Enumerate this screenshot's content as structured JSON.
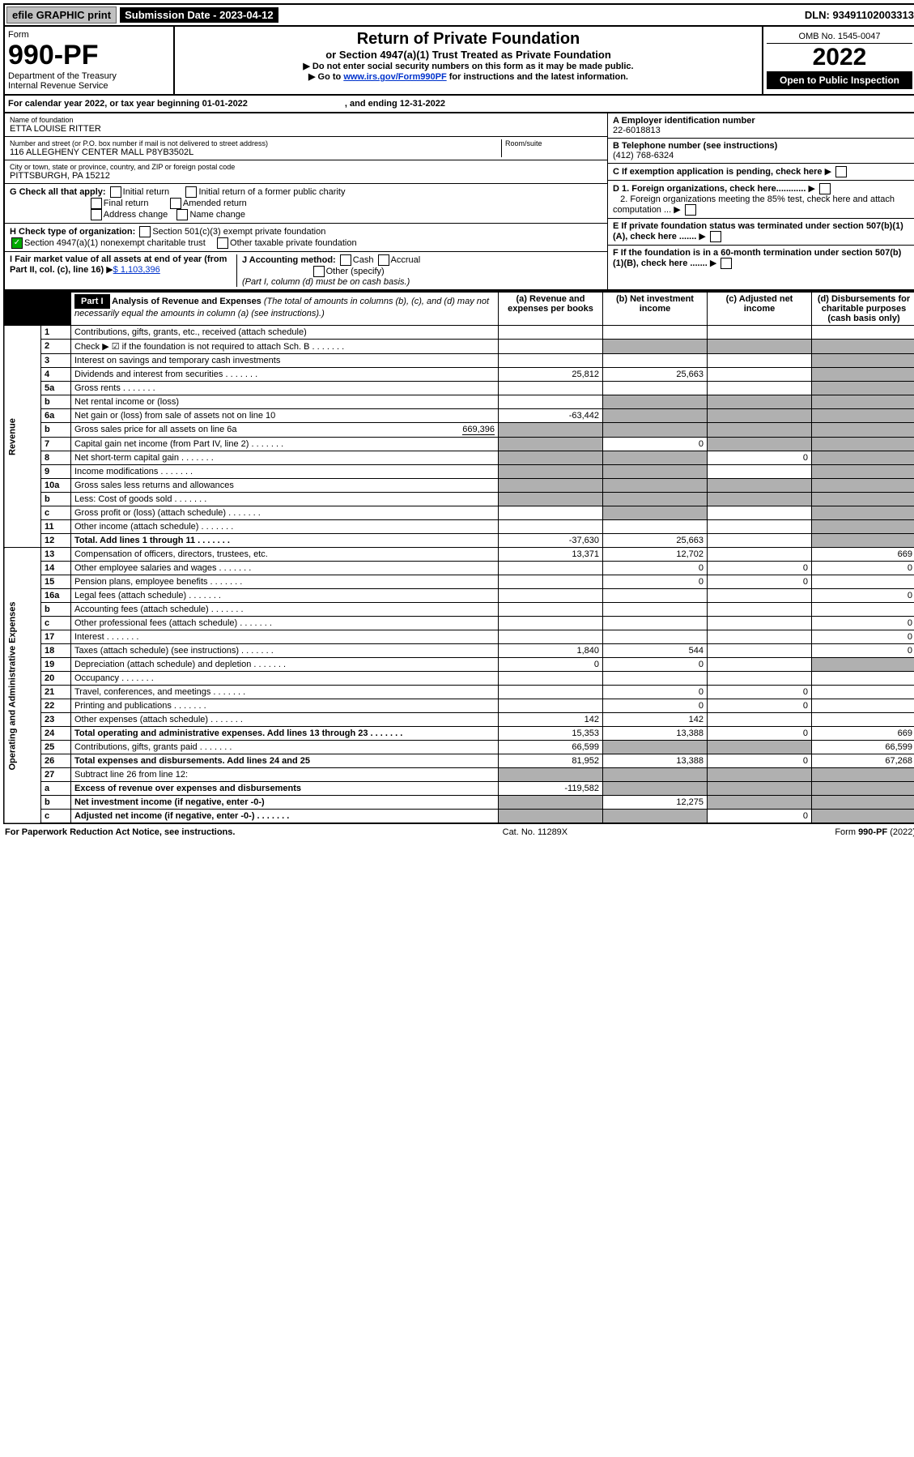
{
  "topbar": {
    "efile": "efile GRAPHIC print",
    "submission_label": "Submission Date - 2023-04-12",
    "dln": "DLN: 93491102003313"
  },
  "header": {
    "form_label": "Form",
    "form_number": "990-PF",
    "dept": "Department of the Treasury",
    "irs": "Internal Revenue Service",
    "title": "Return of Private Foundation",
    "subtitle": "or Section 4947(a)(1) Trust Treated as Private Foundation",
    "instr1": "▶ Do not enter social security numbers on this form as it may be made public.",
    "instr2_pre": "▶ Go to ",
    "instr2_link": "www.irs.gov/Form990PF",
    "instr2_post": " for instructions and the latest information.",
    "omb": "OMB No. 1545-0047",
    "year": "2022",
    "open": "Open to Public Inspection"
  },
  "cal": {
    "text_a": "For calendar year 2022, or tax year beginning 01-01-2022",
    "text_b": ", and ending 12-31-2022"
  },
  "id": {
    "name_label": "Name of foundation",
    "name": "ETTA LOUISE RITTER",
    "addr_label": "Number and street (or P.O. box number if mail is not delivered to street address)",
    "addr": "116 ALLEGHENY CENTER MALL P8YB3502L",
    "room_label": "Room/suite",
    "city_label": "City or town, state or province, country, and ZIP or foreign postal code",
    "city": "PITTSBURGH, PA  15212",
    "a_label": "A Employer identification number",
    "a_val": "22-6018813",
    "b_label": "B Telephone number (see instructions)",
    "b_val": "(412) 768-6324",
    "c_label": "C If exemption application is pending, check here",
    "d1": "D 1. Foreign organizations, check here............",
    "d2": "2. Foreign organizations meeting the 85% test, check here and attach computation ...",
    "e": "E  If private foundation status was terminated under section 507(b)(1)(A), check here .......",
    "f": "F  If the foundation is in a 60-month termination under section 507(b)(1)(B), check here .......",
    "g_label": "G Check all that apply:",
    "g_opts": [
      "Initial return",
      "Final return",
      "Address change",
      "Initial return of a former public charity",
      "Amended return",
      "Name change"
    ],
    "h_label": "H Check type of organization:",
    "h_opts": [
      "Section 501(c)(3) exempt private foundation",
      "Section 4947(a)(1) nonexempt charitable trust",
      "Other taxable private foundation"
    ],
    "i_label": "I Fair market value of all assets at end of year (from Part II, col. (c), line 16)",
    "i_val": "$  1,103,396",
    "j_label": "J Accounting method:",
    "j_opts": [
      "Cash",
      "Accrual",
      "Other (specify)"
    ],
    "j_note": "(Part I, column (d) must be on cash basis.)"
  },
  "part1": {
    "label": "Part I",
    "title": "Analysis of Revenue and Expenses",
    "title_note": "(The total of amounts in columns (b), (c), and (d) may not necessarily equal the amounts in column (a) (see instructions).)",
    "cols": {
      "a": "(a)  Revenue and expenses per books",
      "b": "(b)  Net investment income",
      "c": "(c)  Adjusted net income",
      "d": "(d)  Disbursements for charitable purposes (cash basis only)"
    },
    "side_rev": "Revenue",
    "side_exp": "Operating and Administrative Expenses",
    "rows": [
      {
        "n": "1",
        "l": "Contributions, gifts, grants, etc., received (attach schedule)",
        "a": "",
        "b": "",
        "c": "",
        "d": "",
        "dg": false,
        "cg": false,
        "bg": false
      },
      {
        "n": "2",
        "l": "Check ▶ ☑ if the foundation is not required to attach Sch. B",
        "dots": true,
        "a": "",
        "b": "",
        "c": "",
        "d": "",
        "bg": true,
        "cg": true,
        "dg": true
      },
      {
        "n": "3",
        "l": "Interest on savings and temporary cash investments",
        "a": "",
        "b": "",
        "c": "",
        "d": "",
        "dg": true
      },
      {
        "n": "4",
        "l": "Dividends and interest from securities",
        "dots": true,
        "a": "25,812",
        "b": "25,663",
        "c": "",
        "d": "",
        "dg": true
      },
      {
        "n": "5a",
        "l": "Gross rents",
        "dots": true,
        "a": "",
        "b": "",
        "c": "",
        "d": "",
        "dg": true
      },
      {
        "n": "b",
        "l": "Net rental income or (loss)",
        "a": "",
        "b": "",
        "c": "",
        "d": "",
        "bg": true,
        "cg": true,
        "dg": true,
        "inline": true
      },
      {
        "n": "6a",
        "l": "Net gain or (loss) from sale of assets not on line 10",
        "a": "-63,442",
        "b": "",
        "c": "",
        "d": "",
        "bg": true,
        "cg": true,
        "dg": true
      },
      {
        "n": "b",
        "l": "Gross sales price for all assets on line 6a",
        "inline_val": "669,396",
        "a": "",
        "b": "",
        "c": "",
        "d": "",
        "ag": true,
        "bg": true,
        "cg": true,
        "dg": true
      },
      {
        "n": "7",
        "l": "Capital gain net income (from Part IV, line 2)",
        "dots": true,
        "a": "",
        "b": "0",
        "c": "",
        "d": "",
        "ag": true,
        "cg": true,
        "dg": true
      },
      {
        "n": "8",
        "l": "Net short-term capital gain",
        "dots": true,
        "a": "",
        "b": "",
        "c": "0",
        "d": "",
        "ag": true,
        "bg": true,
        "dg": true
      },
      {
        "n": "9",
        "l": "Income modifications",
        "dots": true,
        "a": "",
        "b": "",
        "c": "",
        "d": "",
        "ag": true,
        "bg": true,
        "dg": true
      },
      {
        "n": "10a",
        "l": "Gross sales less returns and allowances",
        "inline": true,
        "a": "",
        "b": "",
        "c": "",
        "d": "",
        "ag": true,
        "bg": true,
        "cg": true,
        "dg": true
      },
      {
        "n": "b",
        "l": "Less: Cost of goods sold",
        "dots": true,
        "inline": true,
        "a": "",
        "b": "",
        "c": "",
        "d": "",
        "ag": true,
        "bg": true,
        "cg": true,
        "dg": true
      },
      {
        "n": "c",
        "l": "Gross profit or (loss) (attach schedule)",
        "dots": true,
        "a": "",
        "b": "",
        "c": "",
        "d": "",
        "bg": true,
        "dg": true
      },
      {
        "n": "11",
        "l": "Other income (attach schedule)",
        "dots": true,
        "a": "",
        "b": "",
        "c": "",
        "d": "",
        "dg": true
      },
      {
        "n": "12",
        "l": "Total. Add lines 1 through 11",
        "dots": true,
        "bold": true,
        "a": "-37,630",
        "b": "25,663",
        "c": "",
        "d": "",
        "dg": true
      },
      {
        "n": "13",
        "l": "Compensation of officers, directors, trustees, etc.",
        "a": "13,371",
        "b": "12,702",
        "c": "",
        "d": "669"
      },
      {
        "n": "14",
        "l": "Other employee salaries and wages",
        "dots": true,
        "a": "",
        "b": "0",
        "c": "0",
        "d": "0"
      },
      {
        "n": "15",
        "l": "Pension plans, employee benefits",
        "dots": true,
        "a": "",
        "b": "0",
        "c": "0",
        "d": ""
      },
      {
        "n": "16a",
        "l": "Legal fees (attach schedule)",
        "dots": true,
        "a": "",
        "b": "",
        "c": "",
        "d": "0"
      },
      {
        "n": "b",
        "l": "Accounting fees (attach schedule)",
        "dots": true,
        "a": "",
        "b": "",
        "c": "",
        "d": ""
      },
      {
        "n": "c",
        "l": "Other professional fees (attach schedule)",
        "dots": true,
        "a": "",
        "b": "",
        "c": "",
        "d": "0"
      },
      {
        "n": "17",
        "l": "Interest",
        "dots": true,
        "a": "",
        "b": "",
        "c": "",
        "d": "0"
      },
      {
        "n": "18",
        "l": "Taxes (attach schedule) (see instructions)",
        "dots": true,
        "a": "1,840",
        "b": "544",
        "c": "",
        "d": "0"
      },
      {
        "n": "19",
        "l": "Depreciation (attach schedule) and depletion",
        "dots": true,
        "a": "0",
        "b": "0",
        "c": "",
        "d": "",
        "dg": true
      },
      {
        "n": "20",
        "l": "Occupancy",
        "dots": true,
        "a": "",
        "b": "",
        "c": "",
        "d": ""
      },
      {
        "n": "21",
        "l": "Travel, conferences, and meetings",
        "dots": true,
        "a": "",
        "b": "0",
        "c": "0",
        "d": ""
      },
      {
        "n": "22",
        "l": "Printing and publications",
        "dots": true,
        "a": "",
        "b": "0",
        "c": "0",
        "d": ""
      },
      {
        "n": "23",
        "l": "Other expenses (attach schedule)",
        "dots": true,
        "a": "142",
        "b": "142",
        "c": "",
        "d": ""
      },
      {
        "n": "24",
        "l": "Total operating and administrative expenses. Add lines 13 through 23",
        "dots": true,
        "bold": true,
        "a": "15,353",
        "b": "13,388",
        "c": "0",
        "d": "669"
      },
      {
        "n": "25",
        "l": "Contributions, gifts, grants paid",
        "dots": true,
        "a": "66,599",
        "b": "",
        "c": "",
        "d": "66,599",
        "bg": true,
        "cg": true
      },
      {
        "n": "26",
        "l": "Total expenses and disbursements. Add lines 24 and 25",
        "bold": true,
        "a": "81,952",
        "b": "13,388",
        "c": "0",
        "d": "67,268"
      },
      {
        "n": "27",
        "l": "Subtract line 26 from line 12:",
        "a": "",
        "b": "",
        "c": "",
        "d": "",
        "ag": true,
        "bg": true,
        "cg": true,
        "dg": true
      },
      {
        "n": "a",
        "l": "Excess of revenue over expenses and disbursements",
        "bold": true,
        "a": "-119,582",
        "b": "",
        "c": "",
        "d": "",
        "bg": true,
        "cg": true,
        "dg": true
      },
      {
        "n": "b",
        "l": "Net investment income (if negative, enter -0-)",
        "bold": true,
        "a": "",
        "b": "12,275",
        "c": "",
        "d": "",
        "ag": true,
        "cg": true,
        "dg": true
      },
      {
        "n": "c",
        "l": "Adjusted net income (if negative, enter -0-)",
        "dots": true,
        "bold": true,
        "a": "",
        "b": "",
        "c": "0",
        "d": "",
        "ag": true,
        "bg": true,
        "dg": true
      }
    ]
  },
  "footer": {
    "left": "For Paperwork Reduction Act Notice, see instructions.",
    "mid": "Cat. No. 11289X",
    "right": "Form 990-PF (2022)"
  }
}
